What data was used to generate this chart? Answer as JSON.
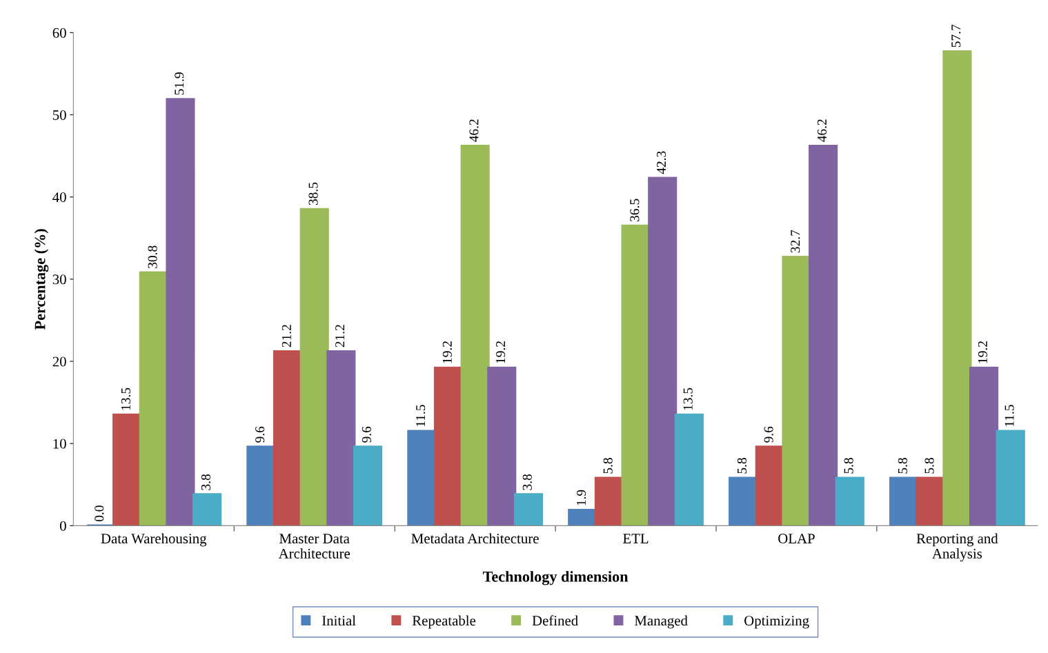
{
  "chart_data": {
    "type": "bar",
    "xlabel": "Technology dimension",
    "ylabel": "Percentage (%)",
    "categories": [
      "Data Warehousing",
      "Master Data\nArchitecture",
      "Metadata Architecture",
      "ETL",
      "OLAP",
      "Reporting and\nAnalysis"
    ],
    "series": [
      {
        "name": "Initial",
        "color": "#4f81bd",
        "values": [
          0.0,
          9.6,
          11.5,
          1.9,
          5.8,
          5.8
        ],
        "value_labels": [
          "0.0",
          "9.6",
          "11.5",
          "1.9",
          "5.8",
          "5.8"
        ]
      },
      {
        "name": "Repeatable",
        "color": "#c0504d",
        "values": [
          13.5,
          21.2,
          19.2,
          5.8,
          9.6,
          5.8
        ],
        "value_labels": [
          "13.5",
          "21.2",
          "19.2",
          "5.8",
          "9.6",
          "5.8"
        ]
      },
      {
        "name": "Defined",
        "color": "#9bbb59",
        "values": [
          30.8,
          38.5,
          46.2,
          36.5,
          32.7,
          57.7
        ],
        "value_labels": [
          "30.8",
          "38.5",
          "46.2",
          "36.5",
          "32.7",
          "57.7"
        ]
      },
      {
        "name": "Managed",
        "color": "#8064a2",
        "values": [
          51.9,
          21.2,
          19.2,
          42.3,
          46.2,
          19.2
        ],
        "value_labels": [
          "51.9",
          "21.2",
          "19.2",
          "42.3",
          "46.2",
          "19.2"
        ]
      },
      {
        "name": "Optimizing",
        "color": "#4bacc6",
        "values": [
          3.8,
          9.6,
          3.8,
          13.5,
          5.8,
          11.5
        ],
        "value_labels": [
          "3.8",
          "9.6",
          "3.8",
          "13.5",
          "5.8",
          "11.5"
        ]
      }
    ],
    "ylim": [
      0,
      60
    ],
    "yticks": [
      0,
      10,
      20,
      30,
      40,
      50,
      60
    ],
    "legend": "bottom",
    "grid": false
  }
}
